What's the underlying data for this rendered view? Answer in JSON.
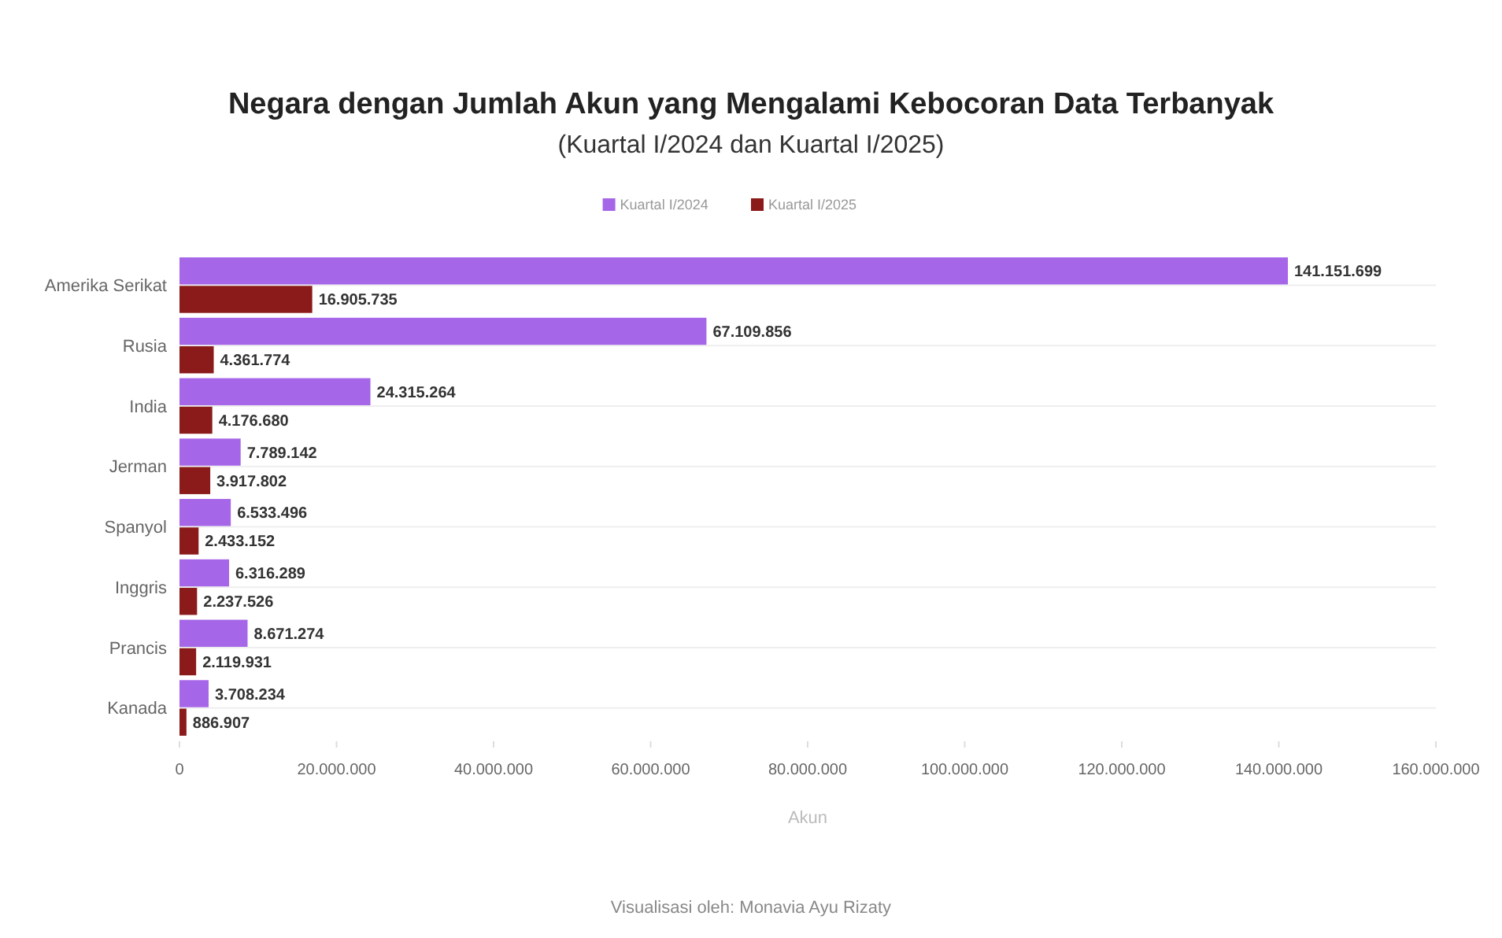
{
  "chart_data": {
    "type": "bar",
    "orientation": "horizontal",
    "title": "Negara dengan Jumlah Akun yang Mengalami Kebocoran Data Terbanyak",
    "subtitle": "(Kuartal I/2024 dan Kuartal I/2025)",
    "xlabel": "Akun",
    "categories": [
      "Amerika Serikat",
      "Rusia",
      "India",
      "Jerman",
      "Spanyol",
      "Inggris",
      "Prancis",
      "Kanada"
    ],
    "series": [
      {
        "name": "Kuartal I/2024",
        "color": "#a566e8",
        "values": [
          141151699,
          67109856,
          24315264,
          7789142,
          6533496,
          6316289,
          8671274,
          3708234
        ],
        "value_labels": [
          "141.151.699",
          "67.109.856",
          "24.315.264",
          "7.789.142",
          "6.533.496",
          "6.316.289",
          "8.671.274",
          "3.708.234"
        ]
      },
      {
        "name": "Kuartal I/2025",
        "color": "#8b1a1a",
        "values": [
          16905735,
          4361774,
          4176680,
          3917802,
          2433152,
          2237526,
          2119931,
          886907
        ],
        "value_labels": [
          "16.905.735",
          "4.361.774",
          "4.176.680",
          "3.917.802",
          "2.433.152",
          "2.237.526",
          "2.119.931",
          "886.907"
        ]
      }
    ],
    "xlim": [
      0,
      160000000
    ],
    "xticks": [
      0,
      {
        "value": 20000000,
        "label": "20.000.000"
      },
      {
        "value": 40000000,
        "label": "40.000.000"
      },
      {
        "value": 60000000,
        "label": "60.000.000"
      },
      {
        "value": 80000000,
        "label": "80.000.000"
      },
      {
        "value": 100000000,
        "label": "100.000.000"
      },
      {
        "value": 120000000,
        "label": "120.000.000"
      },
      {
        "value": 140000000,
        "label": "140.000.000"
      },
      {
        "value": 160000000,
        "label": "160.000.000"
      }
    ],
    "grid": "y",
    "legend": "top",
    "annotations": [
      "Visualisasi oleh: Monavia Ayu Rizaty"
    ]
  }
}
